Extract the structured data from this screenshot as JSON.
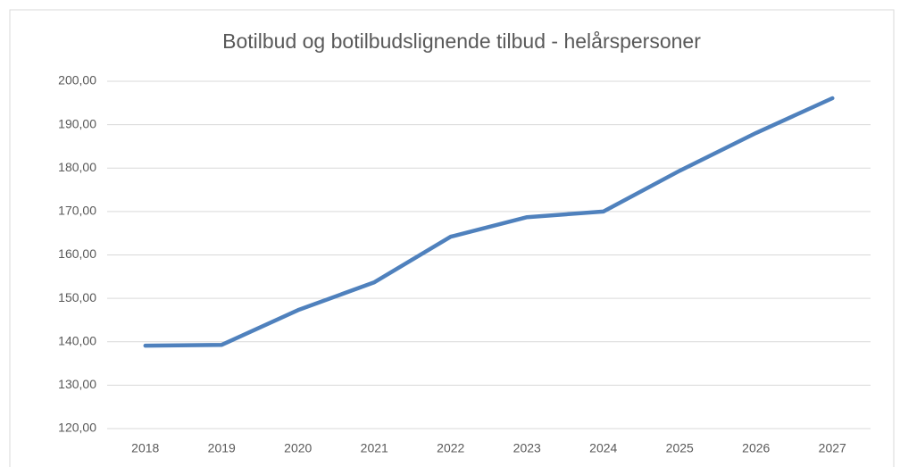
{
  "chart_data": {
    "type": "line",
    "title": "Botilbud og botilbudslignende tilbud - helårspersoner",
    "categories": [
      "2018",
      "2019",
      "2020",
      "2021",
      "2022",
      "2023",
      "2024",
      "2025",
      "2026",
      "2027"
    ],
    "series": [
      {
        "name": "Helårspersoner",
        "color": "#4f81bd",
        "values": [
          139.1,
          139.3,
          147.3,
          153.7,
          164.2,
          168.7,
          170.0,
          179.4,
          188.1,
          196.1
        ]
      }
    ],
    "ylim": [
      120,
      200
    ],
    "yticks": [
      {
        "value": 120,
        "label": "120,00"
      },
      {
        "value": 130,
        "label": "130,00"
      },
      {
        "value": 140,
        "label": "140,00"
      },
      {
        "value": 150,
        "label": "150,00"
      },
      {
        "value": 160,
        "label": "160,00"
      },
      {
        "value": 170,
        "label": "170,00"
      },
      {
        "value": 180,
        "label": "180,00"
      },
      {
        "value": 190,
        "label": "190,00"
      },
      {
        "value": 200,
        "label": "200,00"
      }
    ],
    "grid": true
  }
}
